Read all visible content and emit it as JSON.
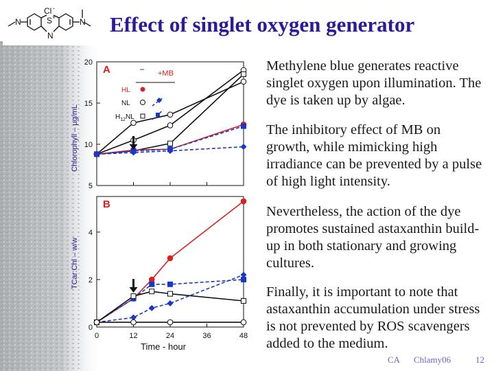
{
  "slide": {
    "title": "Effect of singlet oxygen generator",
    "paragraphs": [
      "Methylene blue generates reactive singlet oxygen upon illumination. The dye is taken up by algae.",
      "The inhibitory effect of MB on growth, while mimicking high irradiance can be prevented by a pulse of high light intensity.",
      "Nevertheless, the action of the dye promotes sustained astaxanthin build-up in both stationary and growing cultures.",
      "Finally, it is important to note that astaxanthin accumulation under stress is not prevented by ROS scavengers added to the medium."
    ],
    "footer": {
      "left": "CA",
      "center": "Chlamy06",
      "page": "12"
    }
  },
  "molecule": {
    "labels": [
      "Cl",
      "-",
      "S",
      "+",
      "N",
      "N",
      "N"
    ]
  },
  "colors": {
    "title": "#2b1a9a",
    "HL": "#dc2020",
    "NL": "#1a37c8",
    "H12NL": "#1a1a1a",
    "footer": "#6a64c9"
  },
  "chart_data": [
    {
      "type": "line",
      "panel": "A",
      "ylabel": "Chlorophyll – µg/mL",
      "xlabel": "",
      "ylim": [
        5,
        20
      ],
      "yticks": [
        "5",
        "10",
        "15",
        "20"
      ],
      "xlim": [
        0,
        48
      ],
      "arrow_at": 12,
      "legend": {
        "col_minus": "–",
        "col_mb": "+MB",
        "rows": [
          {
            "label": "HL"
          },
          {
            "label": "NL"
          },
          {
            "label_main": "H",
            "label_sub": "12",
            "label_tail": "NL"
          }
        ]
      },
      "series": [
        {
          "key": "NL",
          "variant": "control",
          "points": [
            [
              0,
              8.8
            ],
            [
              12,
              12.6
            ],
            [
              24,
              13.6
            ],
            [
              48,
              17.6
            ]
          ]
        },
        {
          "key": "HL",
          "variant": "control",
          "points": [
            [
              0,
              8.8
            ],
            [
              12,
              10.5
            ],
            [
              24,
              12.3
            ],
            [
              48,
              19.0
            ]
          ]
        },
        {
          "key": "H12NL",
          "variant": "control",
          "points": [
            [
              0,
              8.8
            ],
            [
              12,
              9.2
            ],
            [
              24,
              10.1
            ],
            [
              48,
              18.5
            ]
          ]
        },
        {
          "key": "HL",
          "variant": "mb",
          "points": [
            [
              0,
              8.8
            ],
            [
              12,
              9.3
            ],
            [
              24,
              9.4
            ],
            [
              48,
              12.4
            ]
          ]
        },
        {
          "key": "H12NL",
          "variant": "mb",
          "points": [
            [
              0,
              8.8
            ],
            [
              12,
              9.2
            ],
            [
              24,
              9.4
            ],
            [
              48,
              12.2
            ]
          ]
        },
        {
          "key": "NL",
          "variant": "mb",
          "points": [
            [
              0,
              8.8
            ],
            [
              12,
              9.0
            ],
            [
              24,
              9.2
            ],
            [
              48,
              9.7
            ]
          ]
        }
      ]
    },
    {
      "type": "line",
      "panel": "B",
      "ylabel": "TCar:Chl – w/w",
      "xlabel": "Time - hour",
      "ylim": [
        0,
        5.5
      ],
      "yticks": [
        "0",
        "2",
        "4"
      ],
      "xlim": [
        0,
        48
      ],
      "xticks": [
        "0",
        "12",
        "24",
        "36",
        "48"
      ],
      "arrow_at": 12,
      "series": [
        {
          "key": "HL",
          "variant": "mb",
          "points": [
            [
              0,
              0.2
            ],
            [
              12,
              1.2
            ],
            [
              18,
              2.0
            ],
            [
              24,
              2.9
            ],
            [
              48,
              5.3
            ]
          ]
        },
        {
          "key": "H12NL",
          "variant": "mb",
          "points": [
            [
              0,
              0.2
            ],
            [
              12,
              1.2
            ],
            [
              18,
              1.8
            ],
            [
              24,
              1.8
            ],
            [
              48,
              2.0
            ]
          ]
        },
        {
          "key": "NL",
          "variant": "mb",
          "points": [
            [
              0,
              0.2
            ],
            [
              12,
              0.4
            ],
            [
              18,
              0.8
            ],
            [
              24,
              1.0
            ],
            [
              48,
              2.2
            ]
          ]
        },
        {
          "key": "H12NL",
          "variant": "control",
          "points": [
            [
              0,
              0.2
            ],
            [
              12,
              1.3
            ],
            [
              18,
              1.5
            ],
            [
              24,
              1.4
            ],
            [
              48,
              1.1
            ]
          ]
        },
        {
          "key": "NL",
          "variant": "control",
          "points": [
            [
              0,
              0.2
            ],
            [
              12,
              0.2
            ],
            [
              24,
              0.2
            ],
            [
              48,
              0.2
            ]
          ]
        }
      ]
    }
  ]
}
